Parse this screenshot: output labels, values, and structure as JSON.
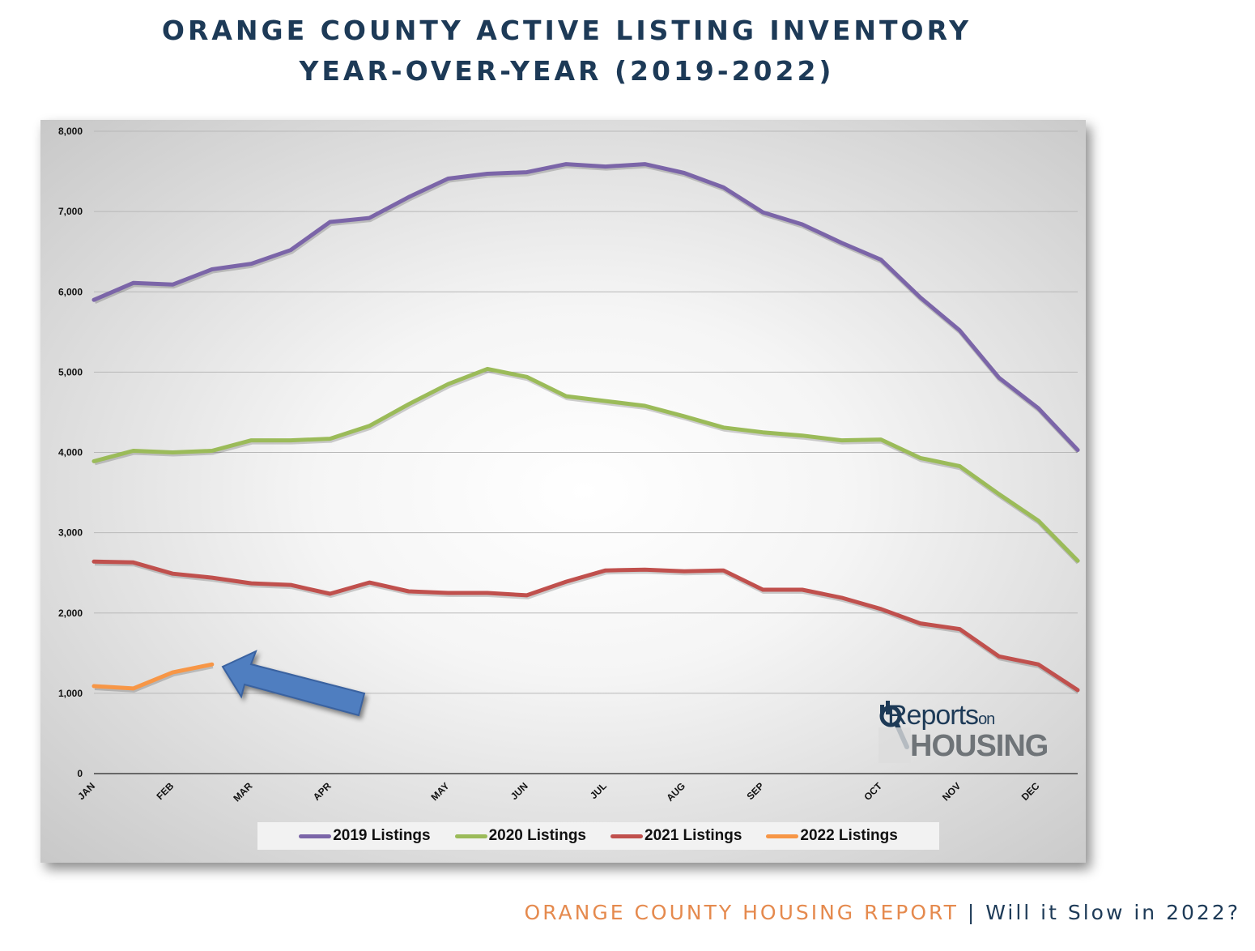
{
  "title_line1": "ORANGE COUNTY ACTIVE LISTING INVENTORY",
  "title_line2": "YEAR-OVER-YEAR (2019-2022)",
  "footer": {
    "report": "ORANGE COUNTY HOUSING REPORT",
    "separator": " | ",
    "subtitle": "Will it Slow in 2022?"
  },
  "logo": {
    "line1": "Reports",
    "line1_small": "on",
    "line2": "HOUSING"
  },
  "chart_data": {
    "type": "line",
    "title": "",
    "xlabel": "",
    "ylabel": "",
    "ylim": [
      0,
      8000
    ],
    "yticks": [
      "0",
      "1,000",
      "2,000",
      "3,000",
      "4,000",
      "5,000",
      "6,000",
      "7,000",
      "8,000"
    ],
    "month_labels": [
      "JAN",
      "FEB",
      "MAR",
      "APR",
      "MAY",
      "JUN",
      "JUL",
      "AUG",
      "SEP",
      "OCT",
      "NOV",
      "DEC"
    ],
    "month_label_points": [
      0,
      2,
      4,
      6,
      9,
      11,
      13,
      15,
      17,
      20,
      22,
      24
    ],
    "num_points": 26,
    "grid": true,
    "legend_position": "bottom",
    "series": [
      {
        "name": "2019 Listings",
        "color": "#7b65a8",
        "values": [
          5900,
          6110,
          6090,
          6280,
          6350,
          6520,
          6870,
          6920,
          7180,
          7410,
          7470,
          7490,
          7590,
          7560,
          7590,
          7480,
          7300,
          6990,
          6840,
          6610,
          6400,
          5930,
          5520,
          4930,
          4550,
          4030
        ]
      },
      {
        "name": "2020 Listings",
        "color": "#9bbb59",
        "values": [
          3890,
          4020,
          4000,
          4020,
          4150,
          4150,
          4170,
          4330,
          4600,
          4850,
          5040,
          4940,
          4700,
          4640,
          4580,
          4450,
          4310,
          4250,
          4210,
          4150,
          4160,
          3930,
          3830,
          3480,
          3150,
          2650
        ]
      },
      {
        "name": "2021 Listings",
        "color": "#c0504d",
        "values": [
          2640,
          2630,
          2490,
          2440,
          2370,
          2350,
          2240,
          2380,
          2270,
          2250,
          2250,
          2220,
          2390,
          2530,
          2540,
          2520,
          2530,
          2290,
          2290,
          2190,
          2050,
          1870,
          1800,
          1460,
          1360,
          1040
        ]
      },
      {
        "name": "2022 Listings",
        "color": "#f79646",
        "values": [
          1090,
          1060,
          1260,
          1360
        ]
      }
    ]
  }
}
